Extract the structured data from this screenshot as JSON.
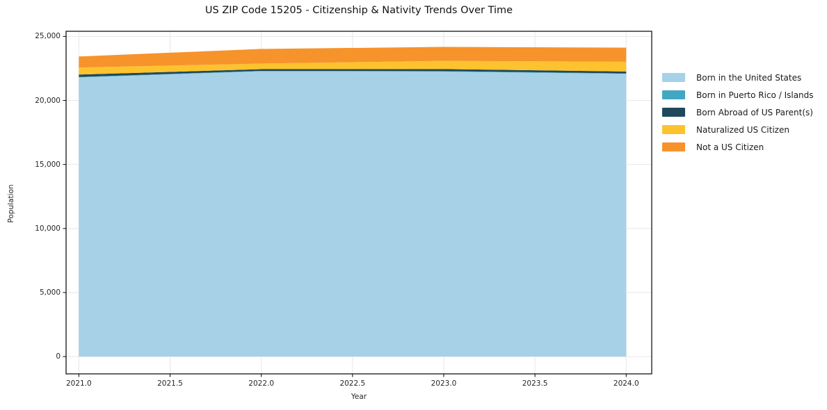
{
  "title": "US ZIP Code 15205 - Citizenship & Nativity Trends Over Time",
  "chart_data": {
    "type": "area",
    "stacked": true,
    "title": "US ZIP Code 15205 - Citizenship & Nativity Trends Over Time",
    "xlabel": "Year",
    "ylabel": "Population",
    "x": [
      2021,
      2022,
      2023,
      2024
    ],
    "series": [
      {
        "name": "Born in the United States",
        "color": "#A6D1E6",
        "values": [
          21800,
          22280,
          22250,
          22080
        ]
      },
      {
        "name": "Born in Puerto Rico / Islands",
        "color": "#43A7C3",
        "values": [
          30,
          30,
          40,
          30
        ]
      },
      {
        "name": "Born Abroad of US Parent(s)",
        "color": "#20495C",
        "values": [
          190,
          130,
          160,
          150
        ]
      },
      {
        "name": "Naturalized US Citizen",
        "color": "#FDC32E",
        "values": [
          550,
          440,
          640,
          760
        ]
      },
      {
        "name": "Not a US Citizen",
        "color": "#F7932B",
        "values": [
          860,
          1140,
          1090,
          1100
        ]
      }
    ],
    "x_tick_labels": [
      "2021.0",
      "2021.5",
      "2022.0",
      "2022.5",
      "2023.0",
      "2023.5",
      "2024.0"
    ],
    "x_tick_values": [
      2021,
      2021.5,
      2022,
      2022.5,
      2023,
      2023.5,
      2024
    ],
    "y_tick_labels": [
      "0",
      "5,000",
      "10,000",
      "15,000",
      "20,000",
      "25,000"
    ],
    "y_tick_values": [
      0,
      5000,
      10000,
      15000,
      20000,
      25000
    ],
    "xlim": [
      2020.93,
      2024.14
    ],
    "ylim": [
      -1350,
      25400
    ],
    "grid": true,
    "grid_color": "#e7e7e7",
    "spine_color": "#000000",
    "background": "#ffffff",
    "legend_position": "right-outside"
  }
}
